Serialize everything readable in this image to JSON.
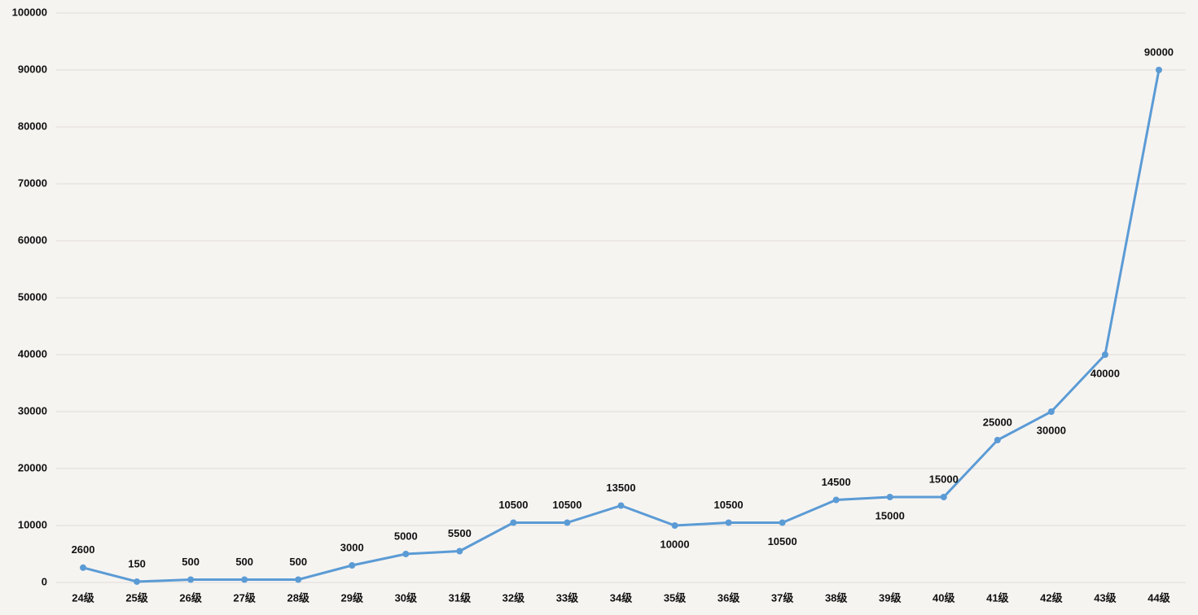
{
  "chart_data": {
    "type": "line",
    "categories": [
      "24级",
      "25级",
      "26级",
      "27级",
      "28级",
      "29级",
      "30级",
      "31级",
      "32级",
      "33级",
      "34级",
      "35级",
      "36级",
      "37级",
      "38级",
      "39级",
      "40级",
      "41级",
      "42级",
      "43级",
      "44级"
    ],
    "values": [
      2600,
      150,
      500,
      500,
      500,
      3000,
      5000,
      5500,
      10500,
      10500,
      13500,
      10000,
      10500,
      10500,
      14500,
      15000,
      15000,
      25000,
      30000,
      40000,
      90000
    ],
    "color": "#5b9bd5",
    "ylim": [
      0,
      100000
    ],
    "yticks": [
      0,
      10000,
      20000,
      30000,
      40000,
      50000,
      60000,
      70000,
      80000,
      90000,
      100000
    ],
    "grid": true
  }
}
